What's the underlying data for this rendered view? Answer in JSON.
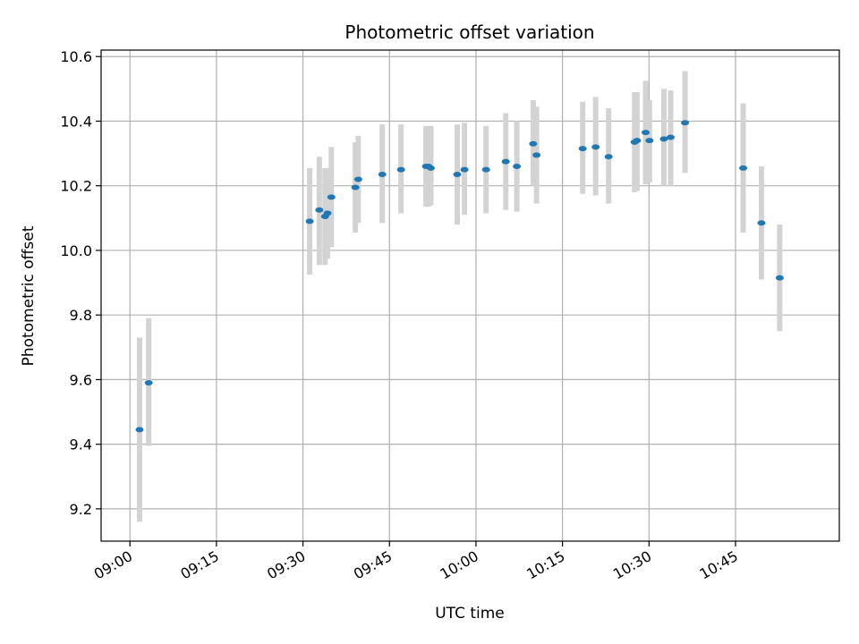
{
  "chart_data": {
    "type": "scatter",
    "title": "Photometric offset variation",
    "xlabel": "UTC time",
    "ylabel": "Photometric offset",
    "xlim": [
      "08:55",
      "11:03"
    ],
    "ylim": [
      9.1,
      10.62
    ],
    "grid": true,
    "x_ticks": [
      "09:00",
      "09:15",
      "09:30",
      "09:45",
      "10:00",
      "10:15",
      "10:30",
      "10:45"
    ],
    "y_ticks": [
      9.2,
      9.4,
      9.6,
      9.8,
      10.0,
      10.2,
      10.4,
      10.6
    ],
    "y_tick_labels": [
      "9.2",
      "9.4",
      "9.6",
      "9.8",
      "10.0",
      "10.2",
      "10.4",
      "10.6"
    ],
    "marker_color": "#1f77b4",
    "errorbar_color": "#d3d3d3",
    "points": [
      {
        "t": "09:01:40",
        "y": 9.445,
        "lo": 9.16,
        "hi": 9.73
      },
      {
        "t": "09:03:15",
        "y": 9.59,
        "lo": 9.395,
        "hi": 9.79
      },
      {
        "t": "09:31:10",
        "y": 10.09,
        "lo": 9.925,
        "hi": 10.255
      },
      {
        "t": "09:32:50",
        "y": 10.125,
        "lo": 9.955,
        "hi": 10.29
      },
      {
        "t": "09:33:50",
        "y": 10.105,
        "lo": 9.955,
        "hi": 10.255
      },
      {
        "t": "09:34:15",
        "y": 10.115,
        "lo": 9.975,
        "hi": 10.255
      },
      {
        "t": "09:34:55",
        "y": 10.165,
        "lo": 10.01,
        "hi": 10.32
      },
      {
        "t": "09:39:05",
        "y": 10.195,
        "lo": 10.055,
        "hi": 10.335
      },
      {
        "t": "09:39:35",
        "y": 10.22,
        "lo": 10.085,
        "hi": 10.355
      },
      {
        "t": "09:43:45",
        "y": 10.235,
        "lo": 10.085,
        "hi": 10.39
      },
      {
        "t": "09:47:00",
        "y": 10.25,
        "lo": 10.115,
        "hi": 10.39
      },
      {
        "t": "09:51:20",
        "y": 10.26,
        "lo": 10.135,
        "hi": 10.385
      },
      {
        "t": "09:51:45",
        "y": 10.26,
        "lo": 10.135,
        "hi": 10.385
      },
      {
        "t": "09:52:10",
        "y": 10.255,
        "lo": 10.14,
        "hi": 10.385
      },
      {
        "t": "09:56:45",
        "y": 10.235,
        "lo": 10.08,
        "hi": 10.39
      },
      {
        "t": "09:58:00",
        "y": 10.25,
        "lo": 10.11,
        "hi": 10.395
      },
      {
        "t": "10:01:45",
        "y": 10.25,
        "lo": 10.115,
        "hi": 10.385
      },
      {
        "t": "10:05:10",
        "y": 10.275,
        "lo": 10.125,
        "hi": 10.425
      },
      {
        "t": "10:07:05",
        "y": 10.26,
        "lo": 10.12,
        "hi": 10.4
      },
      {
        "t": "10:09:55",
        "y": 10.33,
        "lo": 10.2,
        "hi": 10.465
      },
      {
        "t": "10:10:30",
        "y": 10.295,
        "lo": 10.145,
        "hi": 10.445
      },
      {
        "t": "10:18:30",
        "y": 10.315,
        "lo": 10.175,
        "hi": 10.46
      },
      {
        "t": "10:20:45",
        "y": 10.32,
        "lo": 10.17,
        "hi": 10.475
      },
      {
        "t": "10:23:00",
        "y": 10.29,
        "lo": 10.145,
        "hi": 10.44
      },
      {
        "t": "10:27:30",
        "y": 10.335,
        "lo": 10.18,
        "hi": 10.49
      },
      {
        "t": "10:27:55",
        "y": 10.34,
        "lo": 10.185,
        "hi": 10.49
      },
      {
        "t": "10:29:25",
        "y": 10.365,
        "lo": 10.205,
        "hi": 10.525
      },
      {
        "t": "10:30:05",
        "y": 10.34,
        "lo": 10.21,
        "hi": 10.465
      },
      {
        "t": "10:32:35",
        "y": 10.345,
        "lo": 10.2,
        "hi": 10.5
      },
      {
        "t": "10:33:45",
        "y": 10.35,
        "lo": 10.2,
        "hi": 10.495
      },
      {
        "t": "10:36:15",
        "y": 10.395,
        "lo": 10.24,
        "hi": 10.555
      },
      {
        "t": "10:46:20",
        "y": 10.255,
        "lo": 10.055,
        "hi": 10.455
      },
      {
        "t": "10:49:30",
        "y": 10.085,
        "lo": 9.91,
        "hi": 10.26
      },
      {
        "t": "10:52:40",
        "y": 9.915,
        "lo": 9.75,
        "hi": 10.08
      }
    ]
  }
}
